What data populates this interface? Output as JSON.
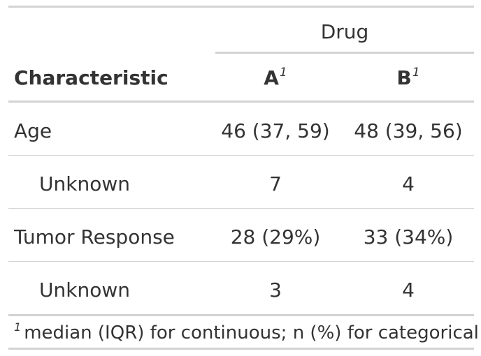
{
  "table": {
    "spanner_label": "Drug",
    "columns": {
      "characteristic": "Characteristic",
      "a": "A",
      "b": "B",
      "footnote_mark": "1"
    },
    "rows": [
      {
        "label": "Age",
        "a": "46 (37, 59)",
        "b": "48 (39, 56)"
      },
      {
        "label": "Unknown",
        "a": "7",
        "b": "4"
      },
      {
        "label": "Tumor Response",
        "a": "28 (29%)",
        "b": "33 (34%)"
      },
      {
        "label": "Unknown",
        "a": "3",
        "b": "4"
      }
    ],
    "footnote": {
      "mark": "1",
      "text": "median (IQR) for continuous; n (%) for categorical"
    }
  }
}
